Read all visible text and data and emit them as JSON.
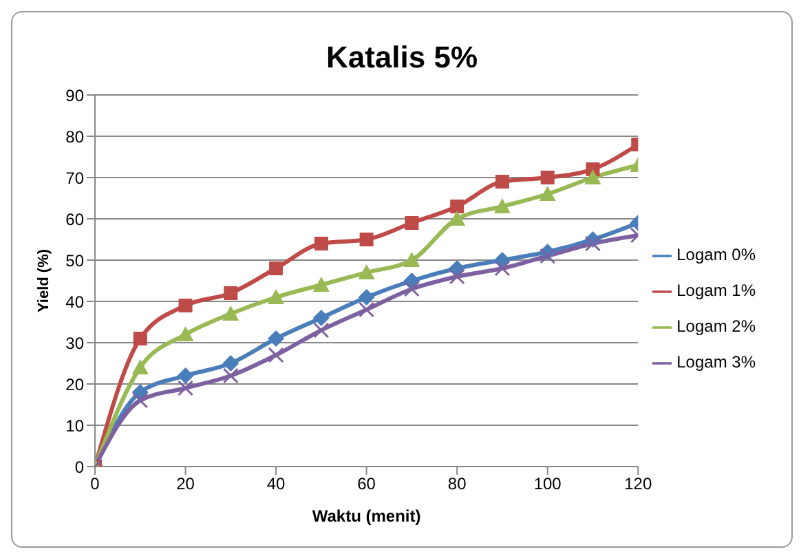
{
  "chart_data": {
    "type": "line",
    "title": "Katalis 5%",
    "xlabel": "Waktu (menit)",
    "ylabel": "Yield (%)",
    "x": [
      0,
      10,
      20,
      30,
      40,
      50,
      60,
      70,
      80,
      90,
      100,
      110,
      120
    ],
    "series": [
      {
        "name": "Logam 0%",
        "color": "#4a7ebb",
        "marker": "diamond",
        "values": [
          0,
          18,
          22,
          25,
          31,
          36,
          41,
          45,
          48,
          50,
          52,
          55,
          59
        ]
      },
      {
        "name": "Logam 1%",
        "color": "#be4b48",
        "marker": "square",
        "values": [
          0,
          31,
          39,
          42,
          48,
          54,
          55,
          59,
          63,
          69,
          70,
          72,
          78
        ]
      },
      {
        "name": "Logam 2%",
        "color": "#98b954",
        "marker": "triangle",
        "values": [
          0,
          24,
          32,
          37,
          41,
          44,
          47,
          50,
          60,
          63,
          66,
          70,
          73
        ]
      },
      {
        "name": "Logam 3%",
        "color": "#7d60a0",
        "marker": "cross",
        "values": [
          0,
          16,
          19,
          22,
          27,
          33,
          38,
          43,
          46,
          48,
          51,
          54,
          56
        ]
      }
    ],
    "xlim": [
      0,
      120
    ],
    "xticks": [
      0,
      20,
      40,
      60,
      80,
      100,
      120
    ],
    "ylim": [
      0,
      90
    ],
    "yticks": [
      0,
      10,
      20,
      30,
      40,
      50,
      60,
      70,
      80,
      90
    ],
    "grid": "y",
    "legend": "right"
  }
}
